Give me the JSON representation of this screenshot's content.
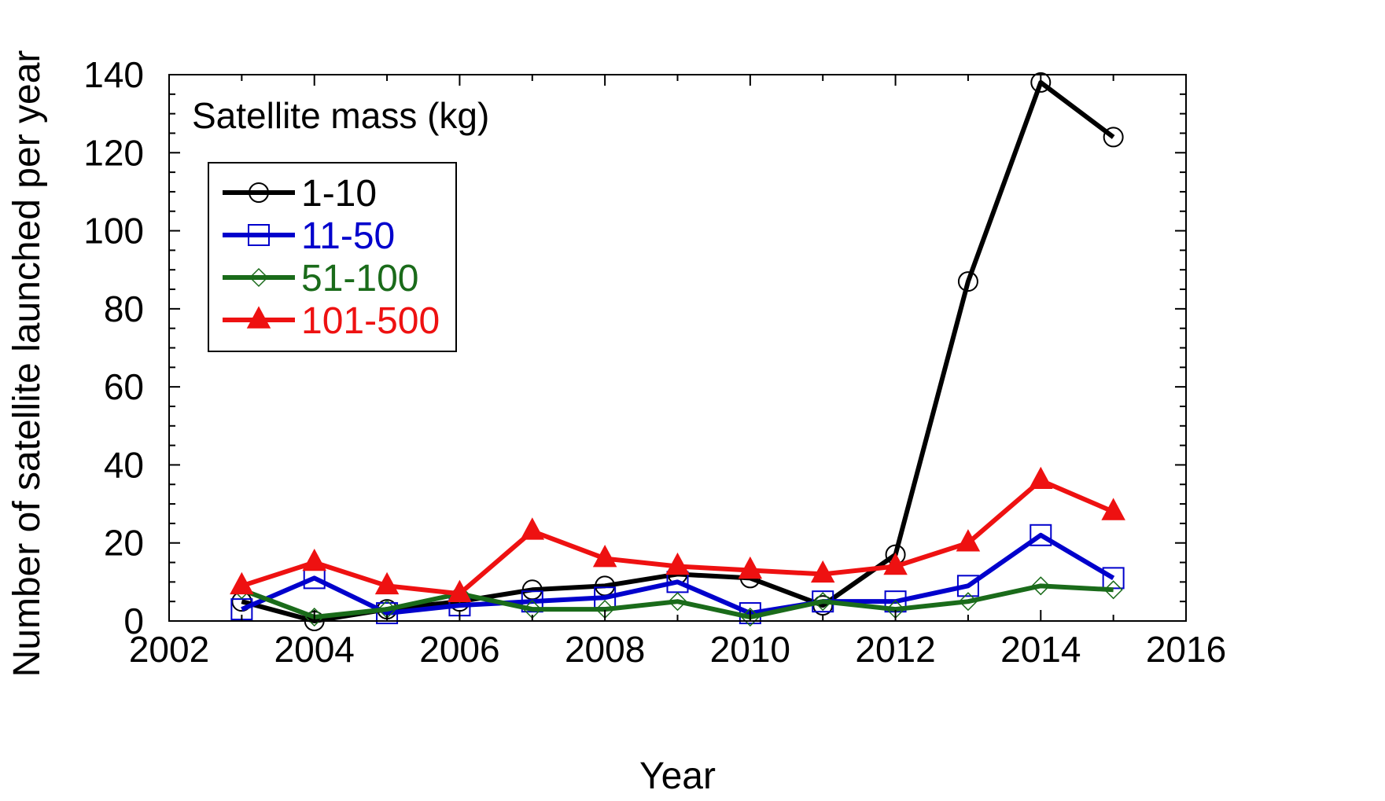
{
  "chart_data": {
    "type": "line",
    "xlabel": "Year",
    "ylabel": "Number of satellite launched per year",
    "xlim": [
      2002,
      2016
    ],
    "ylim": [
      0,
      140
    ],
    "xticks": [
      "2002",
      "2004",
      "2006",
      "2008",
      "2010",
      "2012",
      "2014",
      "2016"
    ],
    "yticks": [
      "0",
      "20",
      "40",
      "60",
      "80",
      "100",
      "120",
      "140"
    ],
    "grid": false,
    "legend_title": "Satellite mass (kg)",
    "legend_position": "top-left",
    "x": [
      2003,
      2004,
      2005,
      2006,
      2007,
      2008,
      2009,
      2010,
      2011,
      2012,
      2013,
      2014,
      2015
    ],
    "series": [
      {
        "name": "1-10",
        "color": "#000000",
        "marker": "circle",
        "values": [
          5,
          0,
          3,
          5,
          8,
          9,
          12,
          11,
          4,
          17,
          87,
          138,
          124
        ]
      },
      {
        "name": "11-50",
        "color": "#0000cc",
        "marker": "square",
        "values": [
          3,
          11,
          2,
          4,
          5,
          6,
          10,
          2,
          5,
          5,
          9,
          22,
          11
        ]
      },
      {
        "name": "51-100",
        "color": "#1a6b1a",
        "marker": "diamond",
        "values": [
          8,
          1,
          3,
          7,
          3,
          3,
          5,
          1,
          5,
          3,
          5,
          9,
          8
        ]
      },
      {
        "name": "101-500",
        "color": "#ee1111",
        "marker": "triangle",
        "values": [
          9,
          15,
          9,
          7,
          23,
          16,
          14,
          13,
          12,
          14,
          20,
          36,
          28
        ]
      }
    ]
  }
}
